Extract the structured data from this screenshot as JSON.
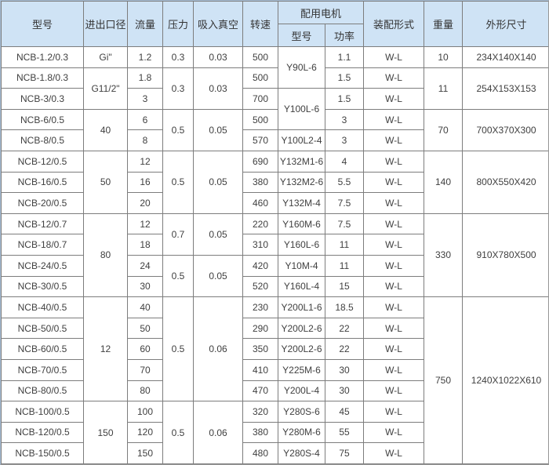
{
  "colors": {
    "header_bg": "#cfe3f5",
    "grid_border": "#7d7d7d",
    "outer_border_topleft": "#a7bfd8",
    "outer_border_bottomright": "#979797",
    "text": "#404040"
  },
  "table": {
    "header": {
      "model": "型号",
      "port": "进出口径",
      "flow": "流量",
      "pressure": "压力",
      "vacuum": "吸入真空",
      "speed": "转速",
      "motor_group": "配用电机",
      "motor_model": "型号",
      "motor_power": "功率",
      "assembly": "装配形式",
      "weight": "重量",
      "dimensions": "外形尺寸"
    },
    "rows": [
      [
        {
          "c": "model",
          "t": "NCB-1.2/0.3"
        },
        {
          "c": "port",
          "t": "Gi\""
        },
        {
          "c": "flow",
          "t": "1.2"
        },
        {
          "c": "pressure",
          "t": "0.3"
        },
        {
          "c": "vacuum",
          "t": "0.03"
        },
        {
          "c": "speed",
          "t": "500"
        },
        {
          "c": "mmodel",
          "t": "Y90L-6",
          "rs": 2
        },
        {
          "c": "mpower",
          "t": "1.1"
        },
        {
          "c": "assembly",
          "t": "W-L"
        },
        {
          "c": "weight",
          "t": "10"
        },
        {
          "c": "dims",
          "t": "234X140X140"
        }
      ],
      [
        {
          "c": "model",
          "t": "NCB-1.8/0.3"
        },
        {
          "c": "port",
          "t": "G11/2\"",
          "rs": 2
        },
        {
          "c": "flow",
          "t": "1.8"
        },
        {
          "c": "pressure",
          "t": "0.3",
          "rs": 2
        },
        {
          "c": "vacuum",
          "t": "0.03",
          "rs": 2
        },
        {
          "c": "speed",
          "t": "500"
        },
        {
          "c": "mpower",
          "t": "1.5"
        },
        {
          "c": "assembly",
          "t": "W-L"
        },
        {
          "c": "weight",
          "t": "11",
          "rs": 2
        },
        {
          "c": "dims",
          "t": "254X153X153",
          "rs": 2
        }
      ],
      [
        {
          "c": "model",
          "t": "NCB-3/0.3"
        },
        {
          "c": "flow",
          "t": "3"
        },
        {
          "c": "speed",
          "t": "700"
        },
        {
          "c": "mmodel",
          "t": "Y100L-6",
          "rs": 2
        },
        {
          "c": "mpower",
          "t": "1.5"
        },
        {
          "c": "assembly",
          "t": "W-L"
        }
      ],
      [
        {
          "c": "model",
          "t": "NCB-6/0.5"
        },
        {
          "c": "port",
          "t": "40",
          "rs": 2
        },
        {
          "c": "flow",
          "t": "6"
        },
        {
          "c": "pressure",
          "t": "0.5",
          "rs": 2
        },
        {
          "c": "vacuum",
          "t": "0.05",
          "rs": 2
        },
        {
          "c": "speed",
          "t": "500"
        },
        {
          "c": "mpower",
          "t": "3"
        },
        {
          "c": "assembly",
          "t": "W-L"
        },
        {
          "c": "weight",
          "t": "70",
          "rs": 2
        },
        {
          "c": "dims",
          "t": "700X370X300",
          "rs": 2
        }
      ],
      [
        {
          "c": "model",
          "t": "NCB-8/0.5"
        },
        {
          "c": "flow",
          "t": "8"
        },
        {
          "c": "speed",
          "t": "570"
        },
        {
          "c": "mmodel",
          "t": "Y100L2-4"
        },
        {
          "c": "mpower",
          "t": "3"
        },
        {
          "c": "assembly",
          "t": "W-L"
        }
      ],
      [
        {
          "c": "model",
          "t": "NCB-12/0.5"
        },
        {
          "c": "port",
          "t": "50",
          "rs": 3
        },
        {
          "c": "flow",
          "t": "12"
        },
        {
          "c": "pressure",
          "t": "0.5",
          "rs": 3
        },
        {
          "c": "vacuum",
          "t": "0.05",
          "rs": 3
        },
        {
          "c": "speed",
          "t": "690"
        },
        {
          "c": "mmodel",
          "t": "Y132M1-6"
        },
        {
          "c": "mpower",
          "t": "4"
        },
        {
          "c": "assembly",
          "t": "W-L"
        },
        {
          "c": "weight",
          "t": "140",
          "rs": 3
        },
        {
          "c": "dims",
          "t": "800X550X420",
          "rs": 3
        }
      ],
      [
        {
          "c": "model",
          "t": "NCB-16/0.5"
        },
        {
          "c": "flow",
          "t": "16"
        },
        {
          "c": "speed",
          "t": "380"
        },
        {
          "c": "mmodel",
          "t": "Y132M2-6"
        },
        {
          "c": "mpower",
          "t": "5.5"
        },
        {
          "c": "assembly",
          "t": "W-L"
        }
      ],
      [
        {
          "c": "model",
          "t": "NCB-20/0.5"
        },
        {
          "c": "flow",
          "t": "20"
        },
        {
          "c": "speed",
          "t": "460"
        },
        {
          "c": "mmodel",
          "t": "Y132M-4"
        },
        {
          "c": "mpower",
          "t": "7.5"
        },
        {
          "c": "assembly",
          "t": "W-L"
        }
      ],
      [
        {
          "c": "model",
          "t": "NCB-12/0.7"
        },
        {
          "c": "port",
          "t": "80",
          "rs": 4
        },
        {
          "c": "flow",
          "t": "12"
        },
        {
          "c": "pressure",
          "t": "0.7",
          "rs": 2
        },
        {
          "c": "vacuum",
          "t": "0.05",
          "rs": 2
        },
        {
          "c": "speed",
          "t": "220"
        },
        {
          "c": "mmodel",
          "t": "Y160M-6"
        },
        {
          "c": "mpower",
          "t": "7.5"
        },
        {
          "c": "assembly",
          "t": "W-L"
        },
        {
          "c": "weight",
          "t": "330",
          "rs": 4
        },
        {
          "c": "dims",
          "t": "910X780X500",
          "rs": 4
        }
      ],
      [
        {
          "c": "model",
          "t": "NCB-18/0.7"
        },
        {
          "c": "flow",
          "t": "18"
        },
        {
          "c": "speed",
          "t": "310"
        },
        {
          "c": "mmodel",
          "t": "Y160L-6"
        },
        {
          "c": "mpower",
          "t": "11"
        },
        {
          "c": "assembly",
          "t": "W-L"
        }
      ],
      [
        {
          "c": "model",
          "t": "NCB-24/0.5"
        },
        {
          "c": "flow",
          "t": "24"
        },
        {
          "c": "pressure",
          "t": "0.5",
          "rs": 2
        },
        {
          "c": "vacuum",
          "t": "0.05",
          "rs": 2
        },
        {
          "c": "speed",
          "t": "420"
        },
        {
          "c": "mmodel",
          "t": "Y10M-4"
        },
        {
          "c": "mpower",
          "t": "11"
        },
        {
          "c": "assembly",
          "t": "W-L"
        }
      ],
      [
        {
          "c": "model",
          "t": "NCB-30/0.5"
        },
        {
          "c": "flow",
          "t": "30"
        },
        {
          "c": "speed",
          "t": "520"
        },
        {
          "c": "mmodel",
          "t": "Y160L-4"
        },
        {
          "c": "mpower",
          "t": "15"
        },
        {
          "c": "assembly",
          "t": "W-L"
        }
      ],
      [
        {
          "c": "model",
          "t": "NCB-40/0.5"
        },
        {
          "c": "port",
          "t": "12",
          "rs": 5
        },
        {
          "c": "flow",
          "t": "40"
        },
        {
          "c": "pressure",
          "t": "0.5",
          "rs": 5
        },
        {
          "c": "vacuum",
          "t": "0.06",
          "rs": 5
        },
        {
          "c": "speed",
          "t": "230"
        },
        {
          "c": "mmodel",
          "t": "Y200L1-6"
        },
        {
          "c": "mpower",
          "t": "18.5"
        },
        {
          "c": "assembly",
          "t": "W-L"
        },
        {
          "c": "weight",
          "t": "750",
          "rs": 8
        },
        {
          "c": "dims",
          "t": "1240X1022X610",
          "rs": 8
        }
      ],
      [
        {
          "c": "model",
          "t": "NCB-50/0.5"
        },
        {
          "c": "flow",
          "t": "50"
        },
        {
          "c": "speed",
          "t": "290"
        },
        {
          "c": "mmodel",
          "t": "Y200L2-6"
        },
        {
          "c": "mpower",
          "t": "22"
        },
        {
          "c": "assembly",
          "t": "W-L"
        }
      ],
      [
        {
          "c": "model",
          "t": "NCB-60/0.5"
        },
        {
          "c": "flow",
          "t": "60"
        },
        {
          "c": "speed",
          "t": "350"
        },
        {
          "c": "mmodel",
          "t": "Y200L2-6"
        },
        {
          "c": "mpower",
          "t": "22"
        },
        {
          "c": "assembly",
          "t": "W-L"
        }
      ],
      [
        {
          "c": "model",
          "t": "NCB-70/0.5"
        },
        {
          "c": "flow",
          "t": "70"
        },
        {
          "c": "speed",
          "t": "410"
        },
        {
          "c": "mmodel",
          "t": "Y225M-6"
        },
        {
          "c": "mpower",
          "t": "30"
        },
        {
          "c": "assembly",
          "t": "W-L"
        }
      ],
      [
        {
          "c": "model",
          "t": "NCB-80/0.5"
        },
        {
          "c": "flow",
          "t": "80"
        },
        {
          "c": "speed",
          "t": "470"
        },
        {
          "c": "mmodel",
          "t": "Y200L-4"
        },
        {
          "c": "mpower",
          "t": "30"
        },
        {
          "c": "assembly",
          "t": "W-L"
        }
      ],
      [
        {
          "c": "model",
          "t": "NCB-100/0.5"
        },
        {
          "c": "port",
          "t": "150",
          "rs": 3
        },
        {
          "c": "flow",
          "t": "100"
        },
        {
          "c": "pressure",
          "t": "0.5",
          "rs": 3
        },
        {
          "c": "vacuum",
          "t": "0.06",
          "rs": 3
        },
        {
          "c": "speed",
          "t": "320"
        },
        {
          "c": "mmodel",
          "t": "Y280S-6"
        },
        {
          "c": "mpower",
          "t": "45"
        },
        {
          "c": "assembly",
          "t": "W-L"
        }
      ],
      [
        {
          "c": "model",
          "t": "NCB-120/0.5"
        },
        {
          "c": "flow",
          "t": "120"
        },
        {
          "c": "speed",
          "t": "380"
        },
        {
          "c": "mmodel",
          "t": "Y280M-6"
        },
        {
          "c": "mpower",
          "t": "55"
        },
        {
          "c": "assembly",
          "t": "W-L"
        }
      ],
      [
        {
          "c": "model",
          "t": "NCB-150/0.5"
        },
        {
          "c": "flow",
          "t": "150"
        },
        {
          "c": "speed",
          "t": "480"
        },
        {
          "c": "mmodel",
          "t": "Y280S-4"
        },
        {
          "c": "mpower",
          "t": "75"
        },
        {
          "c": "assembly",
          "t": "W-L"
        }
      ]
    ]
  }
}
